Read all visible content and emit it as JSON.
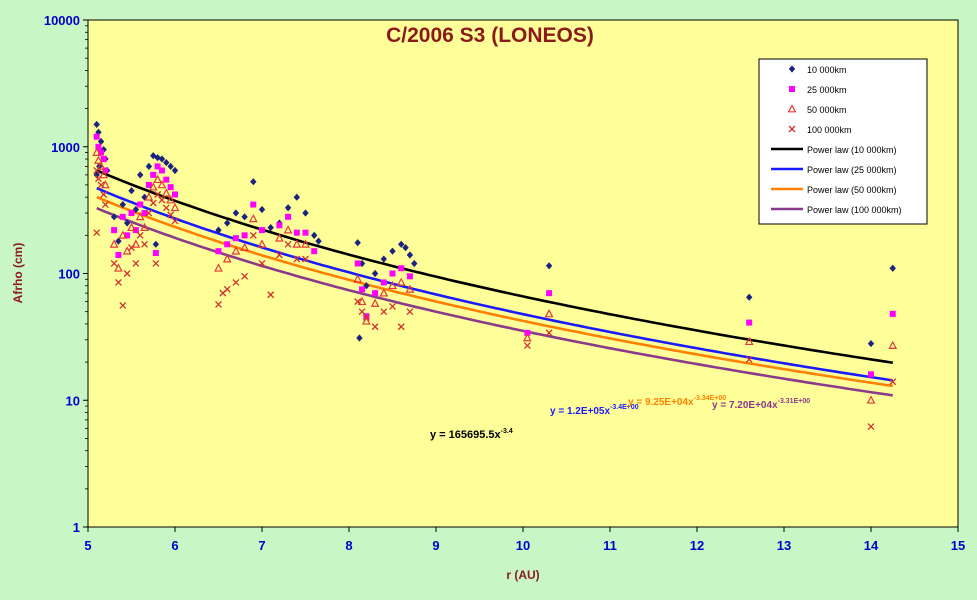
{
  "chart_data": {
    "type": "scatter",
    "title": "C/2006 S3 (LONEOS)",
    "xlabel": "r (AU)",
    "ylabel": "Afrho (cm)",
    "x_ticks": [
      "5",
      "6",
      "7",
      "8",
      "9",
      "10",
      "11",
      "12",
      "13",
      "14",
      "15"
    ],
    "y_ticks": [
      "1",
      "10",
      "100",
      "1000",
      "10000"
    ],
    "xlim": [
      5,
      15
    ],
    "ylim": [
      1,
      10000
    ],
    "y_scale": "log",
    "grid": false,
    "legend_position": "top-right",
    "colors": {
      "page_background": "#c8f7c5",
      "plot_background": "#ffff99",
      "title": "#8b1a1a",
      "axis_label": "#8b1a1a",
      "tick_label": "#0000cc"
    },
    "series": [
      {
        "name": "10 000km",
        "marker": "diamond",
        "color": "#1a237e",
        "points": [
          [
            5.1,
            1500
          ],
          [
            5.12,
            1300
          ],
          [
            5.15,
            1100
          ],
          [
            5.18,
            950
          ],
          [
            5.2,
            800
          ],
          [
            5.13,
            700
          ],
          [
            5.1,
            600
          ],
          [
            5.22,
            650
          ],
          [
            5.3,
            280
          ],
          [
            5.35,
            180
          ],
          [
            5.4,
            350
          ],
          [
            5.45,
            250
          ],
          [
            5.5,
            450
          ],
          [
            5.55,
            320
          ],
          [
            5.6,
            600
          ],
          [
            5.65,
            400
          ],
          [
            5.7,
            700
          ],
          [
            5.75,
            850
          ],
          [
            5.8,
            820
          ],
          [
            5.85,
            800
          ],
          [
            5.9,
            750
          ],
          [
            5.95,
            700
          ],
          [
            6.0,
            650
          ],
          [
            5.78,
            170
          ],
          [
            6.5,
            220
          ],
          [
            6.6,
            250
          ],
          [
            6.7,
            300
          ],
          [
            6.8,
            280
          ],
          [
            6.9,
            530
          ],
          [
            7.0,
            320
          ],
          [
            7.1,
            230
          ],
          [
            7.2,
            250
          ],
          [
            7.3,
            330
          ],
          [
            7.4,
            400
          ],
          [
            7.5,
            300
          ],
          [
            7.6,
            200
          ],
          [
            7.65,
            180
          ],
          [
            8.1,
            175
          ],
          [
            8.15,
            120
          ],
          [
            8.2,
            80
          ],
          [
            8.12,
            31
          ],
          [
            8.3,
            100
          ],
          [
            8.4,
            130
          ],
          [
            8.5,
            150
          ],
          [
            8.6,
            170
          ],
          [
            8.65,
            160
          ],
          [
            8.7,
            140
          ],
          [
            8.75,
            120
          ],
          [
            10.3,
            115
          ],
          [
            12.6,
            65
          ],
          [
            14.0,
            28
          ],
          [
            14.25,
            110
          ]
        ]
      },
      {
        "name": "25 000km",
        "marker": "square",
        "color": "#ff00ff",
        "points": [
          [
            5.1,
            1200
          ],
          [
            5.12,
            1000
          ],
          [
            5.15,
            900
          ],
          [
            5.18,
            800
          ],
          [
            5.2,
            650
          ],
          [
            5.3,
            220
          ],
          [
            5.35,
            140
          ],
          [
            5.4,
            280
          ],
          [
            5.45,
            200
          ],
          [
            5.5,
            300
          ],
          [
            5.55,
            220
          ],
          [
            5.6,
            350
          ],
          [
            5.65,
            300
          ],
          [
            5.7,
            500
          ],
          [
            5.75,
            600
          ],
          [
            5.8,
            700
          ],
          [
            5.85,
            650
          ],
          [
            5.9,
            550
          ],
          [
            5.95,
            480
          ],
          [
            6.0,
            420
          ],
          [
            5.78,
            145
          ],
          [
            6.5,
            150
          ],
          [
            6.6,
            170
          ],
          [
            6.7,
            190
          ],
          [
            6.8,
            200
          ],
          [
            6.9,
            350
          ],
          [
            7.0,
            220
          ],
          [
            7.2,
            240
          ],
          [
            7.3,
            280
          ],
          [
            7.4,
            210
          ],
          [
            7.5,
            210
          ],
          [
            7.6,
            150
          ],
          [
            8.1,
            120
          ],
          [
            8.15,
            75
          ],
          [
            8.2,
            46
          ],
          [
            8.3,
            70
          ],
          [
            8.4,
            85
          ],
          [
            8.5,
            100
          ],
          [
            8.6,
            110
          ],
          [
            8.7,
            95
          ],
          [
            10.05,
            34
          ],
          [
            10.3,
            70
          ],
          [
            12.6,
            41
          ],
          [
            14.0,
            16
          ],
          [
            14.25,
            48
          ]
        ]
      },
      {
        "name": "50 000km",
        "marker": "triangle",
        "color": "#e53935",
        "points": [
          [
            5.1,
            900
          ],
          [
            5.12,
            780
          ],
          [
            5.15,
            700
          ],
          [
            5.18,
            600
          ],
          [
            5.2,
            500
          ],
          [
            5.3,
            170
          ],
          [
            5.35,
            110
          ],
          [
            5.4,
            200
          ],
          [
            5.45,
            150
          ],
          [
            5.5,
            230
          ],
          [
            5.55,
            170
          ],
          [
            5.6,
            280
          ],
          [
            5.65,
            230
          ],
          [
            5.7,
            400
          ],
          [
            5.75,
            480
          ],
          [
            5.8,
            550
          ],
          [
            5.85,
            500
          ],
          [
            5.9,
            430
          ],
          [
            5.95,
            380
          ],
          [
            6.0,
            330
          ],
          [
            6.5,
            110
          ],
          [
            6.6,
            130
          ],
          [
            6.7,
            150
          ],
          [
            6.8,
            160
          ],
          [
            6.9,
            270
          ],
          [
            7.0,
            170
          ],
          [
            7.2,
            190
          ],
          [
            7.3,
            220
          ],
          [
            7.4,
            170
          ],
          [
            7.5,
            170
          ],
          [
            8.1,
            90
          ],
          [
            8.15,
            60
          ],
          [
            8.2,
            42
          ],
          [
            8.3,
            58
          ],
          [
            8.4,
            70
          ],
          [
            8.5,
            80
          ],
          [
            8.6,
            85
          ],
          [
            8.7,
            75
          ],
          [
            10.05,
            31
          ],
          [
            10.3,
            48
          ],
          [
            12.6,
            29
          ],
          [
            14.0,
            10
          ],
          [
            14.25,
            27
          ]
        ]
      },
      {
        "name": "100 000km",
        "marker": "x",
        "color": "#d32f2f",
        "points": [
          [
            5.1,
            650
          ],
          [
            5.12,
            560
          ],
          [
            5.15,
            500
          ],
          [
            5.18,
            420
          ],
          [
            5.2,
            350
          ],
          [
            5.1,
            210
          ],
          [
            5.3,
            120
          ],
          [
            5.35,
            85
          ],
          [
            5.4,
            56
          ],
          [
            5.45,
            100
          ],
          [
            5.5,
            160
          ],
          [
            5.55,
            120
          ],
          [
            5.6,
            200
          ],
          [
            5.65,
            170
          ],
          [
            5.7,
            300
          ],
          [
            5.75,
            360
          ],
          [
            5.8,
            420
          ],
          [
            5.85,
            380
          ],
          [
            5.9,
            330
          ],
          [
            5.95,
            290
          ],
          [
            6.0,
            260
          ],
          [
            5.78,
            120
          ],
          [
            6.5,
            57
          ],
          [
            6.55,
            70
          ],
          [
            6.6,
            75
          ],
          [
            6.7,
            85
          ],
          [
            6.8,
            95
          ],
          [
            6.9,
            200
          ],
          [
            7.0,
            120
          ],
          [
            7.1,
            68
          ],
          [
            7.2,
            140
          ],
          [
            7.3,
            170
          ],
          [
            7.4,
            130
          ],
          [
            7.5,
            130
          ],
          [
            8.1,
            60
          ],
          [
            8.15,
            50
          ],
          [
            8.2,
            45
          ],
          [
            8.3,
            38
          ],
          [
            8.4,
            50
          ],
          [
            8.5,
            55
          ],
          [
            8.6,
            38
          ],
          [
            8.7,
            50
          ],
          [
            10.05,
            27
          ],
          [
            10.3,
            34
          ],
          [
            12.6,
            21
          ],
          [
            14.0,
            6.2
          ],
          [
            14.25,
            14
          ]
        ]
      }
    ],
    "trendlines": [
      {
        "name": "Power law (10 000km)",
        "color": "#000000",
        "a": 165695.5,
        "b": -3.4,
        "equation": "y = 165695.5x-3.4"
      },
      {
        "name": "Power law (25 000km)",
        "color": "#1a1aff",
        "a": 120000,
        "b": -3.4,
        "equation": "y = 1.2E+05x-3.4E+00"
      },
      {
        "name": "Power law (50 000km)",
        "color": "#ff8000",
        "a": 92500,
        "b": -3.34,
        "equation": "y = 9.25E+04x-3.34E+00"
      },
      {
        "name": "Power law (100 000km)",
        "color": "#8b3a8b",
        "a": 72000,
        "b": -3.31,
        "equation": "y = 7.20E+04x-3.31E+00"
      }
    ]
  }
}
